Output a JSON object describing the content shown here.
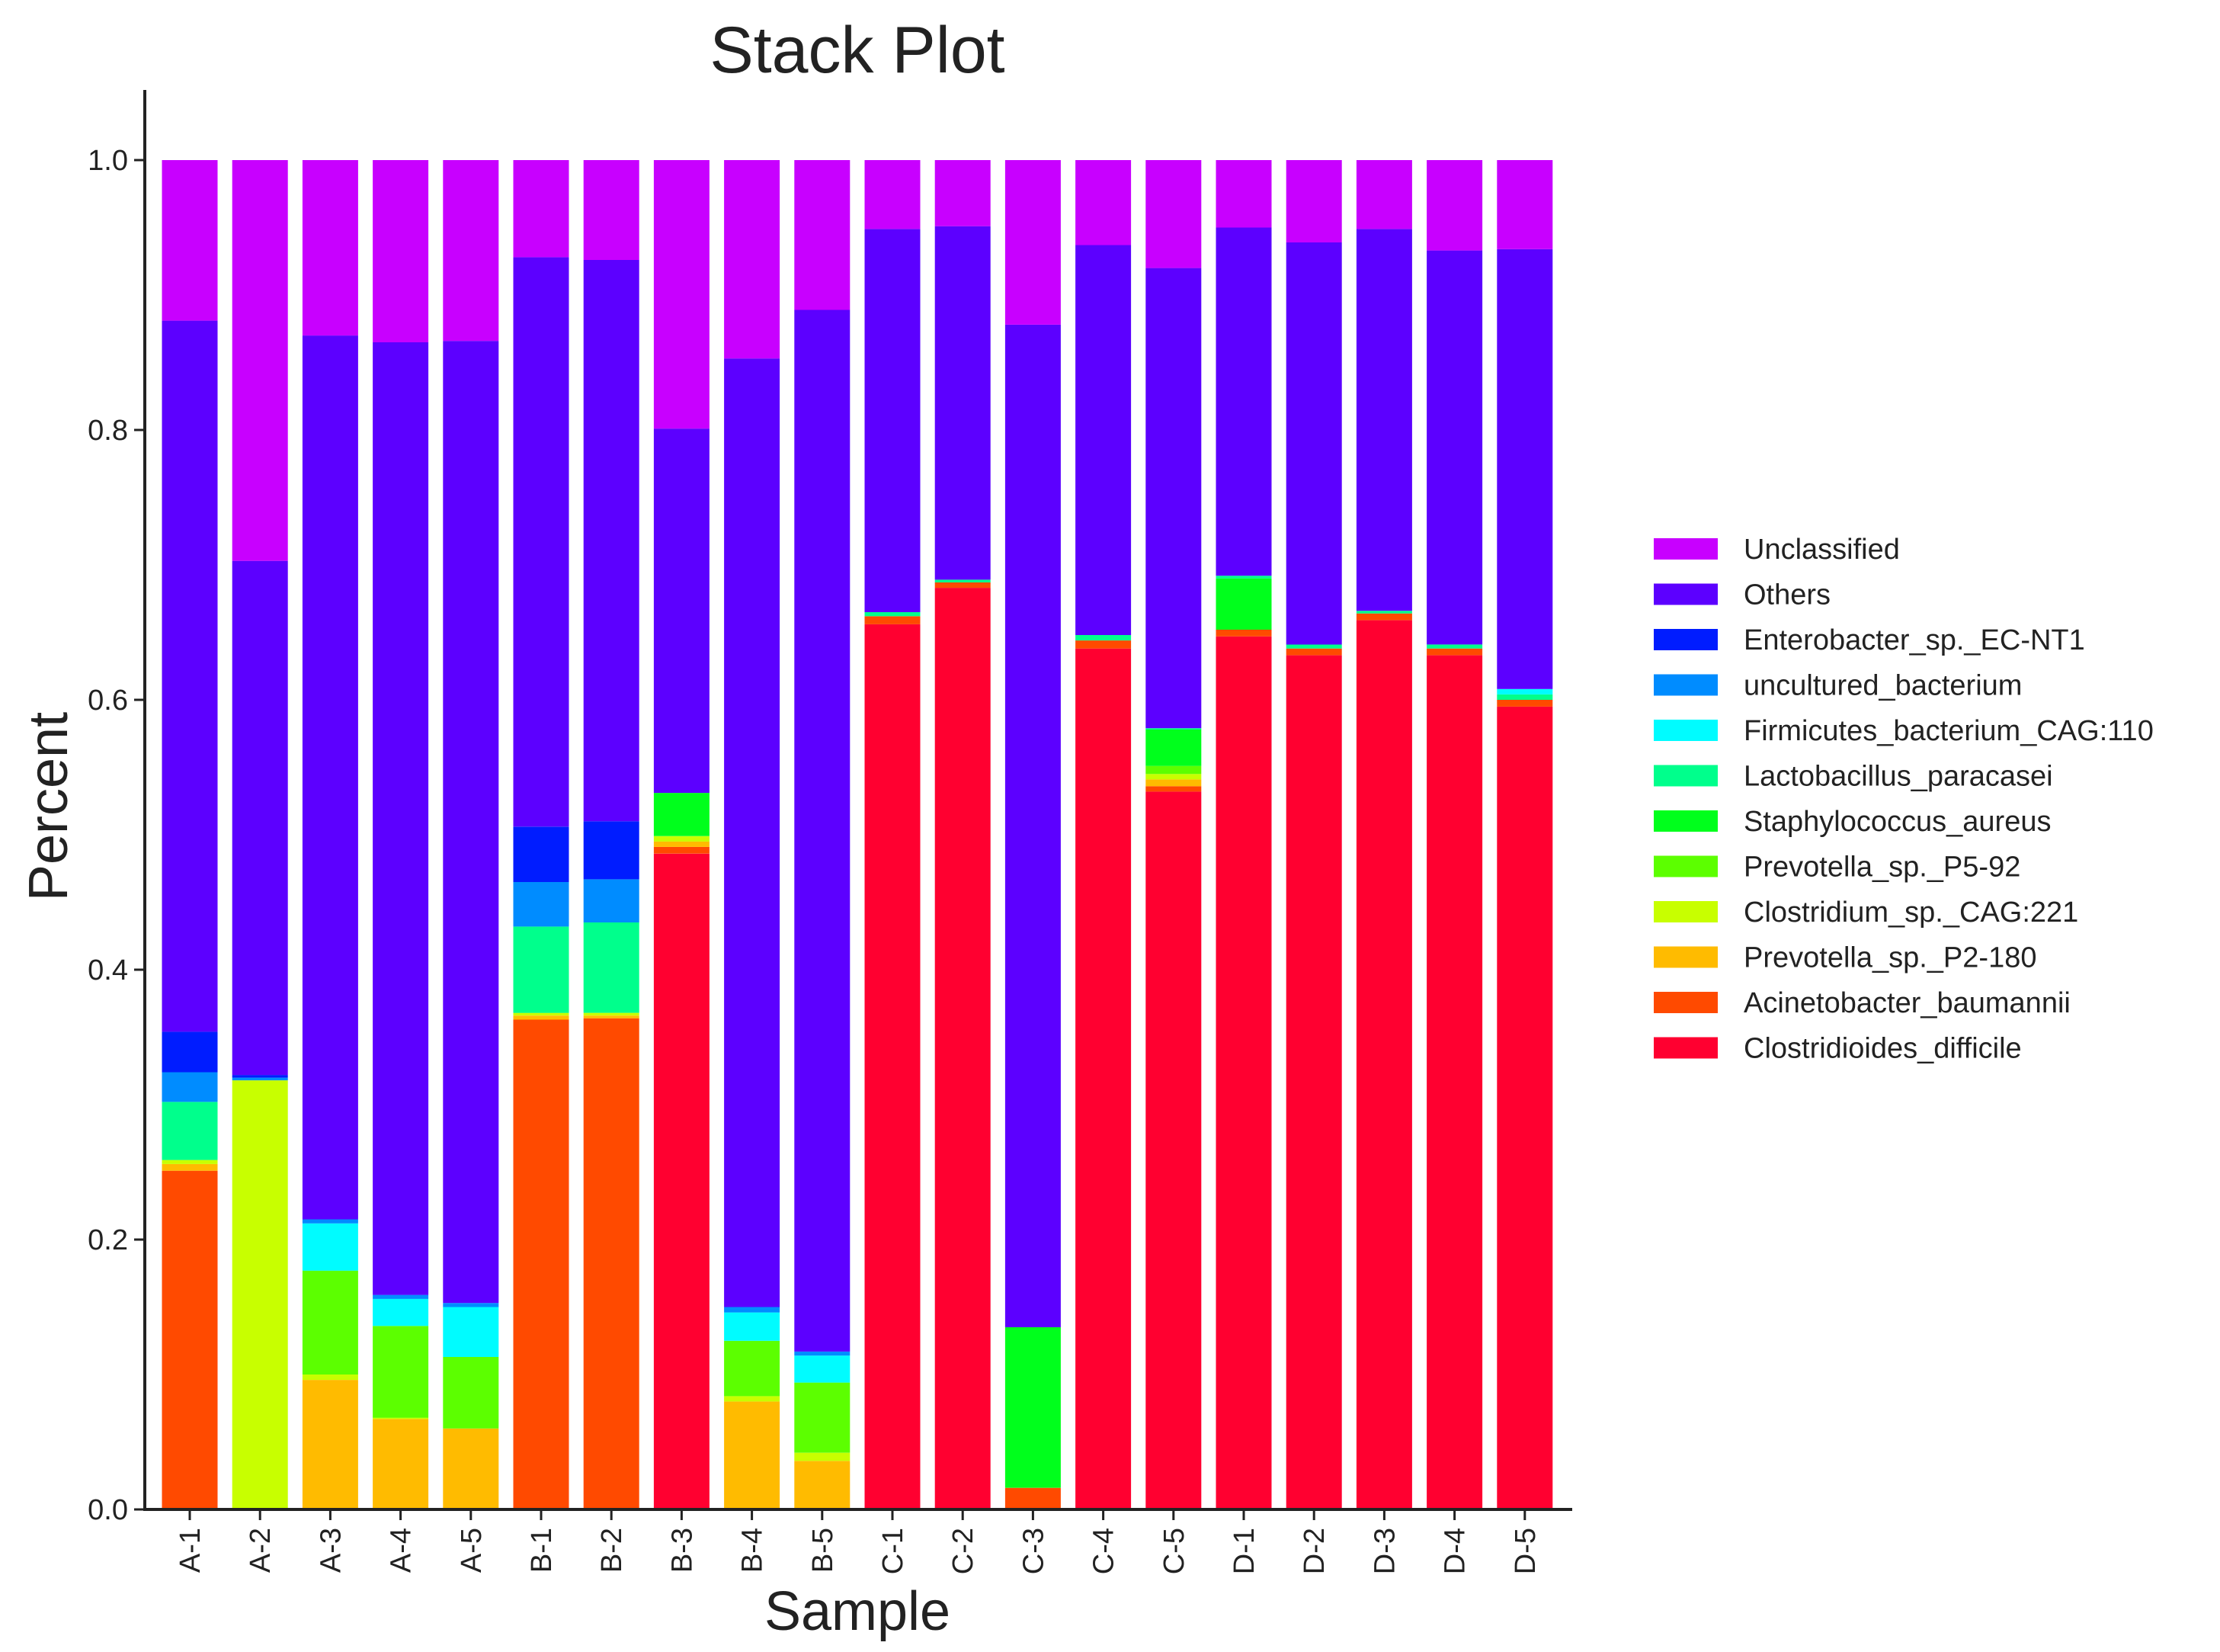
{
  "chart_data": {
    "type": "bar",
    "stacked": true,
    "title": "Stack Plot",
    "xlabel": "Sample",
    "ylabel": "Percent",
    "ylim": [
      0,
      1.05
    ],
    "yticks": [
      "0.0",
      "0.2",
      "0.4",
      "0.6",
      "0.8",
      "1.0"
    ],
    "grid": false,
    "legend_position": "right",
    "categories": [
      "A-1",
      "A-2",
      "A-3",
      "A-4",
      "A-5",
      "B-1",
      "B-2",
      "B-3",
      "B-4",
      "B-5",
      "C-1",
      "C-2",
      "C-3",
      "C-4",
      "C-5",
      "D-1",
      "D-2",
      "D-3",
      "D-4",
      "D-5"
    ],
    "series": [
      {
        "name": "Clostridioides_difficile",
        "color": "#ff0030",
        "values": [
          0,
          0,
          0,
          0,
          0,
          0,
          0,
          0.486,
          0,
          0,
          0.656,
          0.683,
          0,
          0.638,
          0.532,
          0.647,
          0.633,
          0.659,
          0.633,
          0.595
        ]
      },
      {
        "name": "Acinetobacter_baumannii",
        "color": "#ff4a00",
        "values": [
          0.251,
          0,
          0,
          0,
          0,
          0.363,
          0.364,
          0.005,
          0,
          0,
          0.006,
          0.004,
          0.016,
          0.006,
          0.004,
          0.005,
          0.005,
          0.005,
          0.005,
          0.005
        ]
      },
      {
        "name": "Prevotella_sp._P2-180",
        "color": "#ffbb00",
        "values": [
          0.005,
          0,
          0.096,
          0.067,
          0.06,
          0.003,
          0.002,
          0.004,
          0.08,
          0.036,
          0,
          0,
          0,
          0,
          0.005,
          0,
          0,
          0,
          0,
          0
        ]
      },
      {
        "name": "Clostridium_sp._CAG:221",
        "color": "#c8ff00",
        "values": [
          0.003,
          0.318,
          0.004,
          0.001,
          0,
          0.002,
          0.002,
          0.004,
          0.004,
          0.006,
          0,
          0,
          0,
          0,
          0.004,
          0,
          0,
          0,
          0,
          0
        ]
      },
      {
        "name": "Prevotella_sp._P5-92",
        "color": "#5cff00",
        "values": [
          0,
          0,
          0.077,
          0.068,
          0.053,
          0,
          0,
          0,
          0.041,
          0.052,
          0,
          0,
          0,
          0,
          0.006,
          0,
          0,
          0,
          0,
          0
        ]
      },
      {
        "name": "Staphylococcus_aureus",
        "color": "#00ff1c",
        "values": [
          0,
          0,
          0,
          0,
          0,
          0,
          0,
          0.032,
          0,
          0,
          0,
          0,
          0.119,
          0,
          0.027,
          0.038,
          0,
          0,
          0,
          0
        ]
      },
      {
        "name": "Lactobacillus_paracasei",
        "color": "#00ff8c",
        "values": [
          0.043,
          0,
          0,
          0,
          0,
          0.064,
          0.067,
          0,
          0,
          0,
          0.003,
          0.002,
          0,
          0.004,
          0.001,
          0.002,
          0.003,
          0.002,
          0.003,
          0.004
        ]
      },
      {
        "name": "Firmicutes_bacterium_CAG:110",
        "color": "#00fcff",
        "values": [
          0,
          0,
          0.035,
          0.02,
          0.037,
          0,
          0,
          0,
          0.021,
          0.02,
          0,
          0,
          0,
          0,
          0,
          0,
          0,
          0,
          0,
          0.004
        ]
      },
      {
        "name": "uncultured_bacterium",
        "color": "#008cff",
        "values": [
          0.022,
          0.002,
          0.003,
          0.003,
          0.003,
          0.033,
          0.032,
          0,
          0.004,
          0.003,
          0,
          0,
          0,
          0,
          0,
          0,
          0,
          0,
          0,
          0
        ]
      },
      {
        "name": "Enterobacter_sp._EC-NT1",
        "color": "#001cff",
        "values": [
          0.03,
          0.002,
          0,
          0,
          0,
          0.041,
          0.043,
          0,
          0,
          0,
          0,
          0,
          0,
          0,
          0,
          0,
          0,
          0,
          0,
          0
        ]
      },
      {
        "name": "Others",
        "color": "#5c00ff",
        "values": [
          0.527,
          0.381,
          0.655,
          0.706,
          0.713,
          0.422,
          0.416,
          0.27,
          0.703,
          0.772,
          0.284,
          0.262,
          0.743,
          0.289,
          0.341,
          0.258,
          0.298,
          0.283,
          0.292,
          0.326
        ]
      },
      {
        "name": "Unclassified",
        "color": "#c800ff",
        "values": [
          0.119,
          0.297,
          0.13,
          0.135,
          0.134,
          0.072,
          0.074,
          0.199,
          0.147,
          0.111,
          0.051,
          0.049,
          0.122,
          0.063,
          0.08,
          0.05,
          0.061,
          0.051,
          0.067,
          0.066
        ]
      }
    ]
  }
}
